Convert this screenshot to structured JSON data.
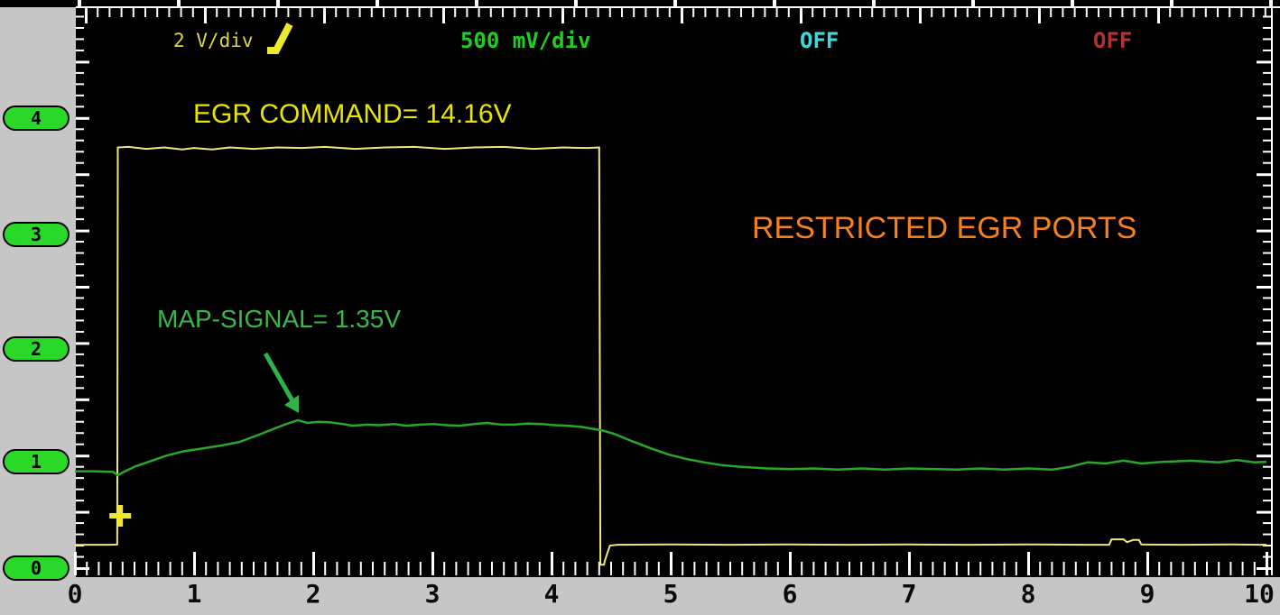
{
  "header": {
    "channels": [
      {
        "id": "A",
        "label": "2 V/div",
        "color": "#ded83a"
      },
      {
        "id": "B",
        "label": "500 mV/div",
        "color": "#22cc22"
      },
      {
        "id": "C",
        "label": "OFF",
        "color": "#40d8d8"
      },
      {
        "id": "D",
        "label": "OFF",
        "color": "#b03232"
      }
    ],
    "trigger_icon": "rising-edge"
  },
  "annotations": {
    "egr_command": "EGR COMMAND= 14.16V",
    "map_signal": "MAP-SIGNAL= 1.35V",
    "diagnosis": "RESTRICTED EGR PORTS",
    "egr_color": "#e8e400",
    "map_color": "#3db54d",
    "diagnosis_color": "#f5801e"
  },
  "chart_data": {
    "type": "line",
    "x_ticks": [
      "0",
      "1",
      "2",
      "3",
      "4",
      "5",
      "6",
      "7",
      "8",
      "9",
      "10"
    ],
    "y_ticks_bottom_to_top": [
      "0",
      "1",
      "2",
      "3",
      "4"
    ],
    "x_range_divisions": [
      0,
      10
    ],
    "y_axis_label_units_volts_map_channel": [
      0,
      4
    ],
    "grid": false,
    "legend_position": "top",
    "series": [
      {
        "name": "EGR COMMAND",
        "scale": "2 V/div",
        "measured_value": "14.16V",
        "color": "#ece87e",
        "points": [
          [
            0,
            0.83
          ],
          [
            0.3,
            0.83
          ],
          [
            0.355,
            0.84
          ],
          [
            0.36,
            14.95
          ],
          [
            0.45,
            14.97
          ],
          [
            0.6,
            14.9
          ],
          [
            0.75,
            14.95
          ],
          [
            0.9,
            14.88
          ],
          [
            1.0,
            14.93
          ],
          [
            1.15,
            14.88
          ],
          [
            1.3,
            14.95
          ],
          [
            1.5,
            14.9
          ],
          [
            1.7,
            14.95
          ],
          [
            1.9,
            14.93
          ],
          [
            2.1,
            14.97
          ],
          [
            2.35,
            14.9
          ],
          [
            2.6,
            14.95
          ],
          [
            2.85,
            14.97
          ],
          [
            3.1,
            14.9
          ],
          [
            3.35,
            14.95
          ],
          [
            3.6,
            14.97
          ],
          [
            3.85,
            14.9
          ],
          [
            4.1,
            14.95
          ],
          [
            4.3,
            14.93
          ],
          [
            4.4,
            14.95
          ],
          [
            4.41,
            0.12
          ],
          [
            4.44,
            0.12
          ],
          [
            4.45,
            0.3
          ],
          [
            4.47,
            0.55
          ],
          [
            4.49,
            0.8
          ],
          [
            4.55,
            0.83
          ],
          [
            5.0,
            0.84
          ],
          [
            5.5,
            0.83
          ],
          [
            6.0,
            0.84
          ],
          [
            6.5,
            0.83
          ],
          [
            7.0,
            0.84
          ],
          [
            7.5,
            0.83
          ],
          [
            8.0,
            0.84
          ],
          [
            8.5,
            0.83
          ],
          [
            8.68,
            0.83
          ],
          [
            8.7,
            1.02
          ],
          [
            8.8,
            1.02
          ],
          [
            8.83,
            0.92
          ],
          [
            8.88,
            1.0
          ],
          [
            8.93,
            1.0
          ],
          [
            8.95,
            0.84
          ],
          [
            9.3,
            0.83
          ],
          [
            9.7,
            0.84
          ],
          [
            10,
            0.83
          ]
        ]
      },
      {
        "name": "MAP-SIGNAL",
        "scale": "500 mV/div",
        "measured_value": "1.35V",
        "color": "#28a828",
        "points": [
          [
            0,
            0.86
          ],
          [
            0.15,
            0.86
          ],
          [
            0.32,
            0.855
          ],
          [
            0.36,
            0.825
          ],
          [
            0.42,
            0.86
          ],
          [
            0.51,
            0.905
          ],
          [
            0.62,
            0.945
          ],
          [
            0.77,
            1.0
          ],
          [
            0.92,
            1.04
          ],
          [
            1.08,
            1.065
          ],
          [
            1.23,
            1.09
          ],
          [
            1.38,
            1.12
          ],
          [
            1.53,
            1.18
          ],
          [
            1.64,
            1.225
          ],
          [
            1.76,
            1.275
          ],
          [
            1.87,
            1.315
          ],
          [
            1.95,
            1.29
          ],
          [
            2.05,
            1.3
          ],
          [
            2.14,
            1.295
          ],
          [
            2.25,
            1.28
          ],
          [
            2.33,
            1.265
          ],
          [
            2.45,
            1.275
          ],
          [
            2.55,
            1.27
          ],
          [
            2.68,
            1.28
          ],
          [
            2.78,
            1.265
          ],
          [
            2.9,
            1.275
          ],
          [
            3.01,
            1.28
          ],
          [
            3.12,
            1.27
          ],
          [
            3.23,
            1.265
          ],
          [
            3.35,
            1.28
          ],
          [
            3.46,
            1.29
          ],
          [
            3.58,
            1.275
          ],
          [
            3.69,
            1.275
          ],
          [
            3.8,
            1.285
          ],
          [
            3.92,
            1.28
          ],
          [
            4.03,
            1.27
          ],
          [
            4.14,
            1.265
          ],
          [
            4.25,
            1.255
          ],
          [
            4.33,
            1.24
          ],
          [
            4.42,
            1.225
          ],
          [
            4.52,
            1.195
          ],
          [
            4.67,
            1.13
          ],
          [
            4.83,
            1.065
          ],
          [
            4.98,
            1.01
          ],
          [
            5.13,
            0.97
          ],
          [
            5.28,
            0.94
          ],
          [
            5.43,
            0.915
          ],
          [
            5.58,
            0.9
          ],
          [
            5.81,
            0.885
          ],
          [
            6.0,
            0.88
          ],
          [
            6.2,
            0.885
          ],
          [
            6.4,
            0.875
          ],
          [
            6.6,
            0.885
          ],
          [
            6.8,
            0.875
          ],
          [
            7.0,
            0.885
          ],
          [
            7.2,
            0.88
          ],
          [
            7.4,
            0.875
          ],
          [
            7.6,
            0.885
          ],
          [
            7.8,
            0.875
          ],
          [
            8.0,
            0.885
          ],
          [
            8.2,
            0.875
          ],
          [
            8.35,
            0.9
          ],
          [
            8.5,
            0.94
          ],
          [
            8.65,
            0.93
          ],
          [
            8.8,
            0.955
          ],
          [
            8.95,
            0.93
          ],
          [
            9.14,
            0.945
          ],
          [
            9.37,
            0.955
          ],
          [
            9.6,
            0.94
          ],
          [
            9.75,
            0.96
          ],
          [
            9.9,
            0.94
          ],
          [
            10,
            0.945
          ]
        ]
      }
    ],
    "trigger_marker": {
      "t": 0.38,
      "level_volts": 1.86,
      "color": "#f0e62c"
    }
  }
}
